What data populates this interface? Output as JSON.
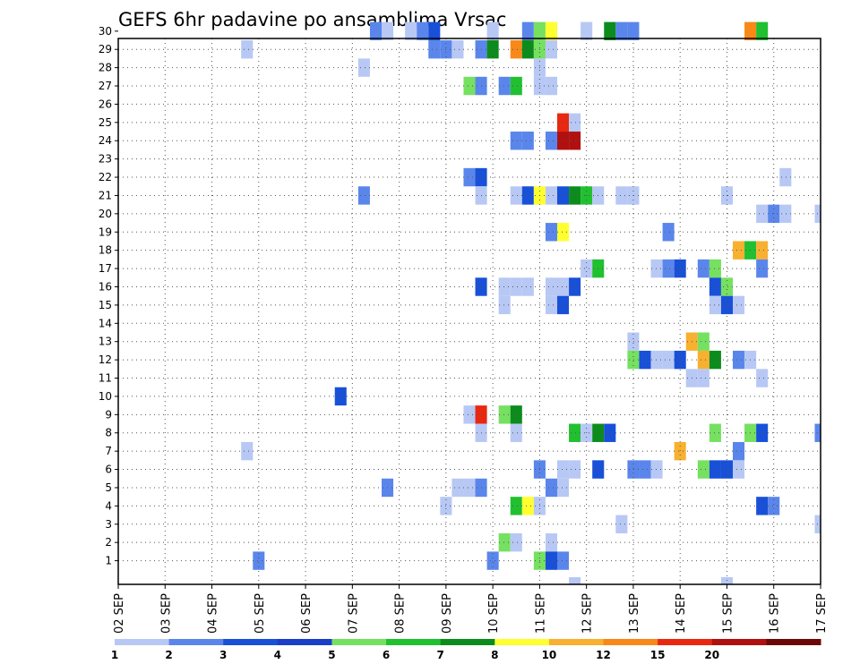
{
  "chart_data": {
    "type": "heatmap",
    "title": "GEFS 6hr padavine po ansamblima Vrsac",
    "xlabel": "",
    "ylabel": "",
    "x_ticks": [
      "02 SEP",
      "03 SEP",
      "04 SEP",
      "05 SEP",
      "06 SEP",
      "07 SEP",
      "08 SEP",
      "09 SEP",
      "10 SEP",
      "11 SEP",
      "12 SEP",
      "13 SEP",
      "14 SEP",
      "15 SEP",
      "16 SEP",
      "17 SEP"
    ],
    "y_ticks": [
      1,
      2,
      3,
      4,
      5,
      6,
      7,
      8,
      9,
      10,
      11,
      12,
      13,
      14,
      15,
      16,
      17,
      18,
      19,
      20,
      21,
      22,
      23,
      24,
      25,
      26,
      27,
      28,
      29,
      30
    ],
    "x_unit": "6-hour step from 02 SEP 00Z",
    "grid": true,
    "colorbar": {
      "labels": [
        "1",
        "2",
        "3",
        "4",
        "5",
        "6",
        "7",
        "8",
        "10",
        "12",
        "15",
        "20"
      ],
      "colors": [
        "#b8c8f5",
        "#5a86ec",
        "#1850d8",
        "#1a3ec8",
        "#76e060",
        "#20c030",
        "#0c8c1c",
        "#ffff30",
        "#f8b030",
        "#f88818",
        "#e82810",
        "#b01010",
        "#6c0808"
      ]
    },
    "cells": [
      {
        "y": 30,
        "x": [
          [
            22,
            "#5a86ec"
          ],
          [
            23,
            "#b8c8f5"
          ],
          [
            25,
            "#b8c8f5"
          ],
          [
            26,
            "#5a86ec"
          ],
          [
            27,
            "#1850d8"
          ],
          [
            32,
            "#b8c8f5"
          ],
          [
            35,
            "#5a86ec"
          ],
          [
            36,
            "#76e060"
          ],
          [
            37,
            "#ffff30"
          ],
          [
            40,
            "#b8c8f5"
          ],
          [
            42,
            "#0c8c1c"
          ],
          [
            43,
            "#5a86ec"
          ],
          [
            44,
            "#5a86ec"
          ],
          [
            54,
            "#f88818"
          ],
          [
            55,
            "#20c030"
          ]
        ]
      },
      {
        "y": 29,
        "x": [
          [
            11,
            "#b8c8f5"
          ],
          [
            27,
            "#5a86ec"
          ],
          [
            28,
            "#5a86ec"
          ],
          [
            29,
            "#b8c8f5"
          ],
          [
            31,
            "#5a86ec"
          ],
          [
            32,
            "#0c8c1c"
          ],
          [
            34,
            "#f88818"
          ],
          [
            35,
            "#0c8c1c"
          ],
          [
            36,
            "#76e060"
          ],
          [
            37,
            "#b8c8f5"
          ]
        ]
      },
      {
        "y": 28,
        "x": [
          [
            21,
            "#b8c8f5"
          ],
          [
            36,
            "#b8c8f5"
          ]
        ]
      },
      {
        "y": 27,
        "x": [
          [
            30,
            "#76e060"
          ],
          [
            31,
            "#5a86ec"
          ],
          [
            33,
            "#5a86ec"
          ],
          [
            34,
            "#20c030"
          ],
          [
            36,
            "#b8c8f5"
          ],
          [
            37,
            "#b8c8f5"
          ]
        ]
      },
      {
        "y": 25,
        "x": [
          [
            38,
            "#e82810"
          ],
          [
            39,
            "#b8c8f5"
          ]
        ]
      },
      {
        "y": 24,
        "x": [
          [
            34,
            "#5a86ec"
          ],
          [
            35,
            "#5a86ec"
          ],
          [
            37,
            "#5a86ec"
          ],
          [
            38,
            "#b01010"
          ],
          [
            39,
            "#b01010"
          ]
        ]
      },
      {
        "y": 22,
        "x": [
          [
            30,
            "#5a86ec"
          ],
          [
            31,
            "#1850d8"
          ],
          [
            57,
            "#b8c8f5"
          ]
        ]
      },
      {
        "y": 21,
        "x": [
          [
            21,
            "#5a86ec"
          ],
          [
            31,
            "#b8c8f5"
          ],
          [
            34,
            "#b8c8f5"
          ],
          [
            35,
            "#1850d8"
          ],
          [
            36,
            "#ffff30"
          ],
          [
            37,
            "#b8c8f5"
          ],
          [
            38,
            "#1850d8"
          ],
          [
            39,
            "#0c8c1c"
          ],
          [
            40,
            "#20c030"
          ],
          [
            41,
            "#b8c8f5"
          ],
          [
            43,
            "#b8c8f5"
          ],
          [
            44,
            "#b8c8f5"
          ],
          [
            52,
            "#b8c8f5"
          ]
        ]
      },
      {
        "y": 20,
        "x": [
          [
            55,
            "#b8c8f5"
          ],
          [
            56,
            "#5a86ec"
          ],
          [
            57,
            "#b8c8f5"
          ],
          [
            60,
            "#b8c8f5"
          ]
        ]
      },
      {
        "y": 19,
        "x": [
          [
            37,
            "#5a86ec"
          ],
          [
            38,
            "#ffff30"
          ],
          [
            47,
            "#5a86ec"
          ]
        ]
      },
      {
        "y": 18,
        "x": [
          [
            53,
            "#f8b030"
          ],
          [
            54,
            "#20c030"
          ],
          [
            55,
            "#f8b030"
          ]
        ]
      },
      {
        "y": 17,
        "x": [
          [
            40,
            "#b8c8f5"
          ],
          [
            41,
            "#20c030"
          ],
          [
            46,
            "#b8c8f5"
          ],
          [
            47,
            "#5a86ec"
          ],
          [
            48,
            "#1850d8"
          ],
          [
            50,
            "#5a86ec"
          ],
          [
            51,
            "#76e060"
          ],
          [
            55,
            "#5a86ec"
          ]
        ]
      },
      {
        "y": 16,
        "x": [
          [
            31,
            "#1850d8"
          ],
          [
            33,
            "#b8c8f5"
          ],
          [
            34,
            "#b8c8f5"
          ],
          [
            35,
            "#b8c8f5"
          ],
          [
            37,
            "#b8c8f5"
          ],
          [
            38,
            "#b8c8f5"
          ],
          [
            39,
            "#1850d8"
          ],
          [
            51,
            "#1850d8"
          ],
          [
            52,
            "#76e060"
          ]
        ]
      },
      {
        "y": 15,
        "x": [
          [
            33,
            "#b8c8f5"
          ],
          [
            37,
            "#b8c8f5"
          ],
          [
            38,
            "#1850d8"
          ],
          [
            51,
            "#b8c8f5"
          ],
          [
            52,
            "#1850d8"
          ],
          [
            53,
            "#b8c8f5"
          ]
        ]
      },
      {
        "y": 13,
        "x": [
          [
            44,
            "#b8c8f5"
          ],
          [
            49,
            "#f8b030"
          ],
          [
            50,
            "#76e060"
          ]
        ]
      },
      {
        "y": 12,
        "x": [
          [
            44,
            "#76e060"
          ],
          [
            45,
            "#1850d8"
          ],
          [
            46,
            "#b8c8f5"
          ],
          [
            47,
            "#b8c8f5"
          ],
          [
            48,
            "#1850d8"
          ],
          [
            50,
            "#f8b030"
          ],
          [
            51,
            "#0c8c1c"
          ],
          [
            53,
            "#5a86ec"
          ],
          [
            54,
            "#b8c8f5"
          ]
        ]
      },
      {
        "y": 11,
        "x": [
          [
            49,
            "#b8c8f5"
          ],
          [
            50,
            "#b8c8f5"
          ],
          [
            55,
            "#b8c8f5"
          ]
        ]
      },
      {
        "y": 10,
        "x": [
          [
            19,
            "#1850d8"
          ]
        ]
      },
      {
        "y": 9,
        "x": [
          [
            30,
            "#b8c8f5"
          ],
          [
            31,
            "#e82810"
          ],
          [
            33,
            "#76e060"
          ],
          [
            34,
            "#0c8c1c"
          ]
        ]
      },
      {
        "y": 8,
        "x": [
          [
            31,
            "#b8c8f5"
          ],
          [
            34,
            "#b8c8f5"
          ],
          [
            39,
            "#20c030"
          ],
          [
            40,
            "#b8c8f5"
          ],
          [
            41,
            "#0c8c1c"
          ],
          [
            42,
            "#1850d8"
          ],
          [
            51,
            "#76e060"
          ],
          [
            54,
            "#76e060"
          ],
          [
            55,
            "#1850d8"
          ],
          [
            60,
            "#5a86ec"
          ]
        ]
      },
      {
        "y": 7,
        "x": [
          [
            11,
            "#b8c8f5"
          ],
          [
            48,
            "#f8b030"
          ],
          [
            53,
            "#5a86ec"
          ]
        ]
      },
      {
        "y": 6,
        "x": [
          [
            36,
            "#5a86ec"
          ],
          [
            38,
            "#b8c8f5"
          ],
          [
            39,
            "#b8c8f5"
          ],
          [
            41,
            "#1850d8"
          ],
          [
            44,
            "#5a86ec"
          ],
          [
            45,
            "#5a86ec"
          ],
          [
            46,
            "#b8c8f5"
          ],
          [
            50,
            "#76e060"
          ],
          [
            51,
            "#1850d8"
          ],
          [
            52,
            "#1850d8"
          ],
          [
            53,
            "#b8c8f5"
          ]
        ]
      },
      {
        "y": 5,
        "x": [
          [
            23,
            "#5a86ec"
          ],
          [
            29,
            "#b8c8f5"
          ],
          [
            30,
            "#b8c8f5"
          ],
          [
            31,
            "#5a86ec"
          ],
          [
            37,
            "#5a86ec"
          ],
          [
            38,
            "#b8c8f5"
          ]
        ]
      },
      {
        "y": 4,
        "x": [
          [
            28,
            "#b8c8f5"
          ],
          [
            34,
            "#20c030"
          ],
          [
            35,
            "#ffff30"
          ],
          [
            36,
            "#b8c8f5"
          ],
          [
            55,
            "#1850d8"
          ],
          [
            56,
            "#5a86ec"
          ]
        ]
      },
      {
        "y": 3,
        "x": [
          [
            43,
            "#b8c8f5"
          ],
          [
            60,
            "#b8c8f5"
          ]
        ]
      },
      {
        "y": 2,
        "x": [
          [
            33,
            "#76e060"
          ],
          [
            34,
            "#b8c8f5"
          ],
          [
            37,
            "#b8c8f5"
          ]
        ]
      },
      {
        "y": 1,
        "x": [
          [
            12,
            "#5a86ec"
          ],
          [
            32,
            "#5a86ec"
          ],
          [
            36,
            "#76e060"
          ],
          [
            37,
            "#1850d8"
          ],
          [
            38,
            "#5a86ec"
          ]
        ]
      },
      {
        "y": 0,
        "x": [
          [
            39,
            "#b8c8f5"
          ],
          [
            52,
            "#b8c8f5"
          ]
        ]
      }
    ]
  }
}
